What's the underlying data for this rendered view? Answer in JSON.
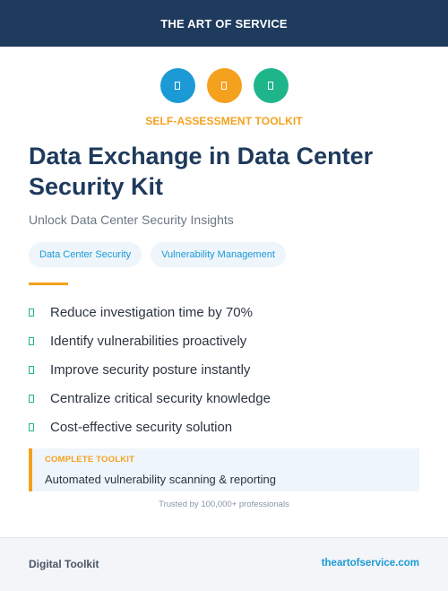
{
  "header": {
    "brand": "THE ART OF SERVICE",
    "color": "#1e3a5c"
  },
  "icons": [
    {
      "name": "blue-icon",
      "color": "#1b9ad6"
    },
    {
      "name": "orange-icon",
      "color": "#f4a11d"
    },
    {
      "name": "green-icon",
      "color": "#1fb58a"
    }
  ],
  "hero": {
    "eyebrow": "SELF-ASSESSMENT TOOLKIT",
    "title": "Data Exchange in Data Center Security Kit",
    "subtitle": "Unlock Data Center Security Insights"
  },
  "tags": [
    "Data Center Security",
    "Vulnerability Management"
  ],
  "features": [
    "Reduce investigation time by 70%",
    "Identify vulnerabilities proactively",
    "Improve security posture instantly",
    "Centralize critical security knowledge",
    "Cost-effective security solution"
  ],
  "callout": {
    "label": "COMPLETE TOOLKIT",
    "text": "Automated vulnerability scanning & reporting"
  },
  "trusted": "Trusted by 100,000+ professionals",
  "footer": {
    "left": "Digital Toolkit",
    "right": "theartofservice.com"
  }
}
